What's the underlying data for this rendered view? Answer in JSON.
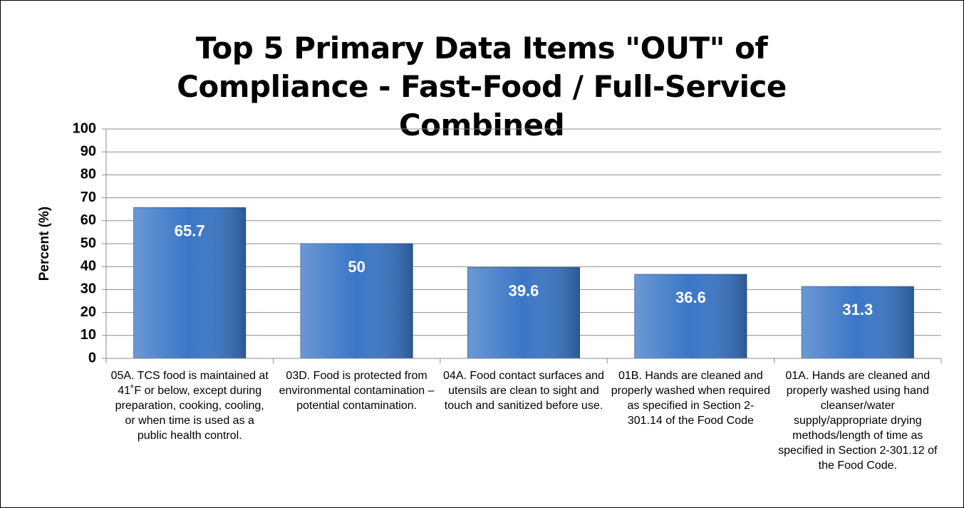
{
  "chart_data": {
    "type": "bar",
    "title": "Top 5 Primary Data Items \"OUT\" of Compliance - Fast-Food / Full-Service Combined",
    "y_label": "Percent (%)",
    "categories": [
      "05A. TCS food is maintained at 41˚F or below, except during preparation, cooking, cooling, or when time is used as a public health control.",
      "03D. Food is protected from environmental contamination – potential contamination.",
      "04A. Food contact surfaces and utensils are clean to sight and touch and sanitized before use.",
      "01B. Hands are cleaned and properly washed when required as specified in Section 2-301.14 of the Food Code",
      "01A. Hands are cleaned and properly washed using hand cleanser/water supply/appropriate drying methods/length of time as specified in Section 2-301.12 of the Food Code."
    ],
    "values": [
      65.7,
      50,
      39.6,
      36.6,
      31.3
    ],
    "color": "#3a76c6",
    "ylim": [
      0,
      100
    ],
    "yticks": [
      0,
      10,
      20,
      30,
      40,
      50,
      60,
      70,
      80,
      90,
      100
    ],
    "grid": true
  }
}
